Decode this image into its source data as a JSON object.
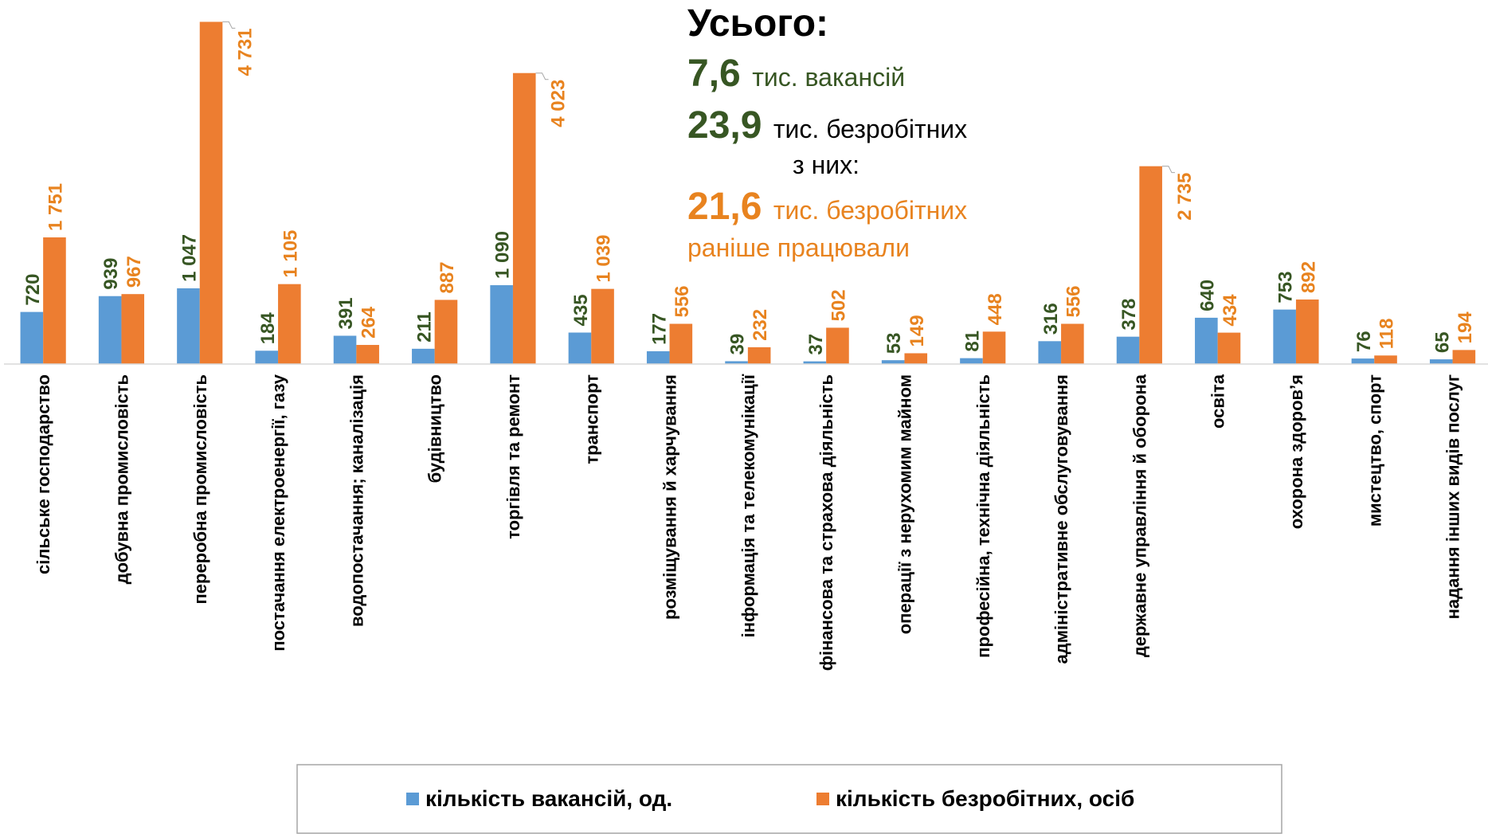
{
  "chart_data": {
    "type": "bar",
    "categories": [
      "сільське господарство",
      "добувна промисловість",
      "переробна промисловість",
      "постачання електроенергії, газу",
      "водопостачання; каналізація",
      "будівництво",
      "торгівля та ремонт",
      "транспорт",
      "розміщування й харчування",
      "інформація та телекомунікації",
      "фінансова та страхова діяльність",
      "операції з нерухомим майном",
      "професійна, технічна діяльність",
      "адміністративне обслуговування",
      "державне управління й оборона",
      "освіта",
      "охорона здоров’я",
      "мистецтво, спорт",
      "надання інших видів послуг"
    ],
    "series": [
      {
        "name": "кількість вакансій, од.",
        "color": "#5b9bd5",
        "label_color": "#375623",
        "values": [
          720,
          939,
          1047,
          184,
          391,
          211,
          1090,
          435,
          177,
          39,
          37,
          53,
          81,
          316,
          378,
          640,
          753,
          76,
          65
        ],
        "value_labels": [
          "720",
          "939",
          "1 047",
          "184",
          "391",
          "211",
          "1 090",
          "435",
          "177",
          "39",
          "37",
          "53",
          "81",
          "316",
          "378",
          "640",
          "753",
          "76",
          "65"
        ]
      },
      {
        "name": "кількість безробітних, осіб",
        "color": "#ed7d31",
        "label_color": "#e8831f",
        "values": [
          1751,
          967,
          4731,
          1105,
          264,
          887,
          4023,
          1039,
          556,
          232,
          502,
          149,
          448,
          556,
          2735,
          434,
          892,
          118,
          194
        ],
        "value_labels": [
          "1 751",
          "967",
          "4 731",
          "1 105",
          "264",
          "887",
          "4 023",
          "1 039",
          "556",
          "232",
          "502",
          "149",
          "448",
          "556",
          "2 735",
          "434",
          "892",
          "118",
          "194"
        ]
      }
    ],
    "ylim": [
      0,
      5000
    ],
    "annotations": {
      "title": "Усього:",
      "vacancies_value": "7,6",
      "vacancies_text": "тис. вакансій",
      "unemployed_value": "23,9",
      "unemployed_text": "тис. безробітних",
      "of_them": "з них:",
      "worked_value": "21,6",
      "worked_text": "тис. безробітних",
      "worked_text2": "раніше працювали"
    }
  }
}
